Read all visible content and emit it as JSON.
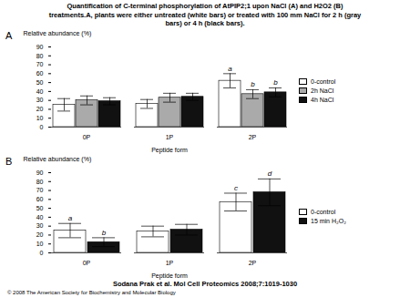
{
  "title": "Quantification of C-terminal phosphorylation of AtPIP2;1 upon NaCl (A) and H2O2 (B)\ntreatments.A, plants were either untreated (white bars) or treated with 100 mm NaCl for 2 h (gray\nbars) or 4 h (black bars).",
  "subtitle": "Sodana Prak et al. Mol Cell Proteomics 2008;7:1019-1030",
  "caption": "© 2008 The American Society for Biochemistry and Molecular Biology",
  "chart_data": [
    {
      "type": "bar",
      "panel_label": "A",
      "categories": [
        "0P",
        "1P",
        "2P"
      ],
      "series": [
        {
          "name": "0-control",
          "color": "#ffffff",
          "values": [
            25,
            26,
            52
          ],
          "errors": [
            7,
            5,
            8
          ]
        },
        {
          "name": "2h NaCl",
          "color": "#aaaaaa",
          "values": [
            30,
            33,
            37
          ],
          "errors": [
            5,
            5,
            5
          ]
        },
        {
          "name": "4h NaCl",
          "color": "#111111",
          "values": [
            29,
            34,
            39
          ],
          "errors": [
            4,
            4,
            5
          ]
        }
      ],
      "annotations": [
        {
          "category": "2P",
          "series": "0-control",
          "text": "a"
        },
        {
          "category": "2P",
          "series": "2h NaCl",
          "text": "b"
        },
        {
          "category": "2P",
          "series": "4h NaCl",
          "text": "b"
        }
      ],
      "xlabel": "Peptide form",
      "ylabel": "Relative abundance (%)",
      "ylim": [
        0,
        90
      ],
      "yticks": [
        0,
        10,
        20,
        30,
        40,
        50,
        60,
        70,
        80,
        90
      ],
      "grid": false,
      "legend": "right"
    },
    {
      "type": "bar",
      "panel_label": "B",
      "categories": [
        "0P",
        "1P",
        "2P"
      ],
      "series": [
        {
          "name": "0-control",
          "color": "#ffffff",
          "values": [
            25,
            24,
            57
          ],
          "errors": [
            8,
            6,
            10
          ]
        },
        {
          "name": "15 min H₂O₂",
          "color": "#111111",
          "values": [
            12,
            26,
            68
          ],
          "errors": [
            5,
            6,
            15
          ]
        }
      ],
      "annotations": [
        {
          "category": "0P",
          "series": "0-control",
          "text": "a"
        },
        {
          "category": "0P",
          "series": "15 min H₂O₂",
          "text": "b"
        },
        {
          "category": "2P",
          "series": "0-control",
          "text": "c"
        },
        {
          "category": "2P",
          "series": "15 min H₂O₂",
          "text": "d"
        }
      ],
      "xlabel": "Peptide form",
      "ylabel": "Relative abundance (%)",
      "ylim": [
        0,
        90
      ],
      "yticks": [
        0,
        10,
        20,
        30,
        40,
        50,
        60,
        70,
        80,
        90
      ],
      "grid": false,
      "legend": "right"
    }
  ]
}
